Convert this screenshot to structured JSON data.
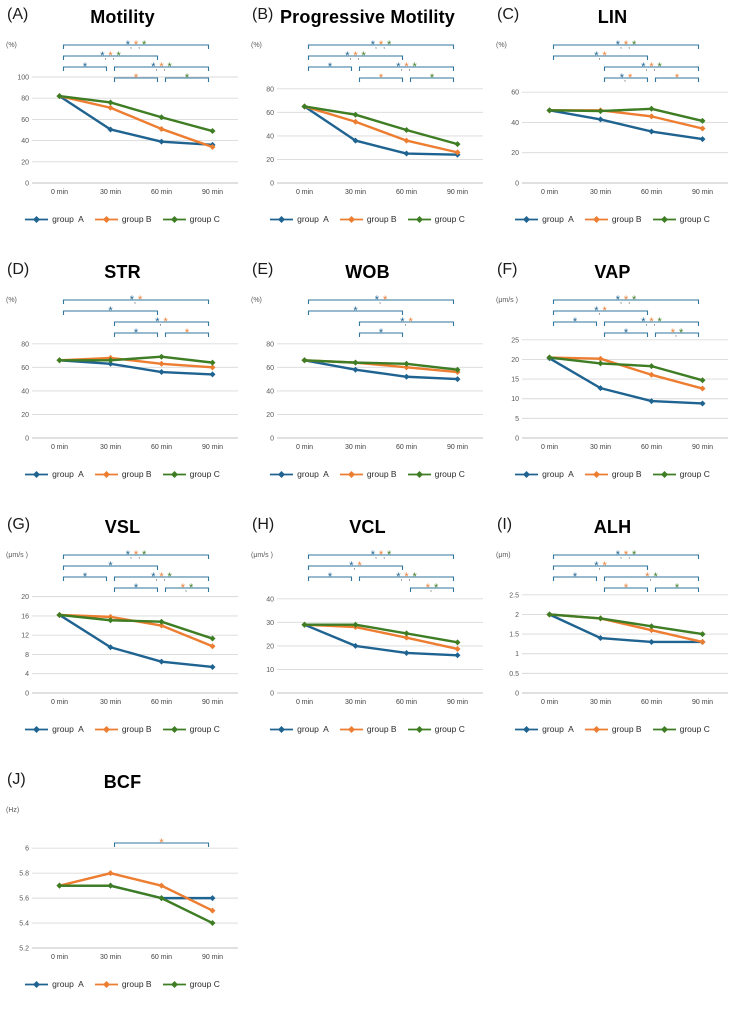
{
  "figure": {
    "background": "#ffffff",
    "panel_count": 10,
    "x_categories": [
      "0 min",
      "30 min",
      "60 min",
      "90 min"
    ]
  },
  "colors": {
    "bracket": "#31769e",
    "grid": "#d9d9d9",
    "baseline": "#c2c2c2",
    "tick_text": "#595959",
    "x_label_text": "#404040",
    "star_comma": "#333333",
    "series": {
      "A": "#1f6391",
      "B": "#ed7d31",
      "C": "#3e7d23"
    }
  },
  "legend": {
    "items": [
      {
        "key": "A",
        "label": "group  A"
      },
      {
        "key": "B",
        "label": "group B"
      },
      {
        "key": "C",
        "label": "group C"
      }
    ]
  },
  "chart_data": [
    {
      "panel": "(A)",
      "title": "Motility",
      "unit": "(%)",
      "type": "line",
      "x": [
        "0 min",
        "30 min",
        "60 min",
        "90 min"
      ],
      "ylim": [
        0,
        100
      ],
      "ytick_vals": [
        0,
        20,
        40,
        60,
        80,
        100
      ],
      "ytick_labels": [
        "0",
        "20",
        "40",
        "60",
        "80",
        "100"
      ],
      "grid": true,
      "legend_position": "bottom",
      "series": [
        {
          "name": "group A",
          "key": "A",
          "values": [
            82,
            50.5,
            39,
            36
          ]
        },
        {
          "name": "group B",
          "key": "B",
          "values": [
            82,
            71,
            51,
            34
          ]
        },
        {
          "name": "group C",
          "key": "C",
          "values": [
            82,
            76,
            62,
            49
          ]
        }
      ],
      "sig_brackets": [
        {
          "row": 0,
          "from": 0,
          "to": 3,
          "stars": [
            "A",
            "B",
            "C"
          ]
        },
        {
          "row": 1,
          "from": 0,
          "to": 2,
          "stars": [
            "A",
            "B",
            "C"
          ]
        },
        {
          "row": 2,
          "from": 0,
          "to": 1,
          "stars": [
            "A"
          ]
        },
        {
          "row": 2,
          "from": 1,
          "to": 3,
          "stars": [
            "A",
            "B",
            "C"
          ]
        },
        {
          "row": 3,
          "from": 1,
          "to": 2,
          "stars": [
            "B"
          ]
        },
        {
          "row": 3,
          "from": 2,
          "to": 3,
          "stars": [
            "C"
          ]
        }
      ]
    },
    {
      "panel": "(B)",
      "title": "Progressive Motility",
      "unit": "(%)",
      "type": "line",
      "x": [
        "0 min",
        "30 min",
        "60 min",
        "90 min"
      ],
      "ylim": [
        0,
        90
      ],
      "ytick_vals": [
        0,
        20,
        40,
        60,
        80
      ],
      "ytick_labels": [
        "0",
        "20",
        "40",
        "60",
        "80"
      ],
      "grid": true,
      "legend_position": "bottom",
      "series": [
        {
          "name": "group A",
          "key": "A",
          "values": [
            65,
            36,
            25,
            24
          ]
        },
        {
          "name": "group B",
          "key": "B",
          "values": [
            65,
            52,
            36,
            26
          ]
        },
        {
          "name": "group C",
          "key": "C",
          "values": [
            65,
            58,
            45,
            33
          ]
        }
      ],
      "sig_brackets": [
        {
          "row": 0,
          "from": 0,
          "to": 3,
          "stars": [
            "A",
            "B",
            "C"
          ]
        },
        {
          "row": 1,
          "from": 0,
          "to": 2,
          "stars": [
            "A",
            "B",
            "C"
          ]
        },
        {
          "row": 2,
          "from": 0,
          "to": 1,
          "stars": [
            "A"
          ]
        },
        {
          "row": 2,
          "from": 1,
          "to": 3,
          "stars": [
            "A",
            "B",
            "C"
          ]
        },
        {
          "row": 3,
          "from": 1,
          "to": 2,
          "stars": [
            "B"
          ]
        },
        {
          "row": 3,
          "from": 2,
          "to": 3,
          "stars": [
            "C"
          ]
        }
      ]
    },
    {
      "panel": "(C)",
      "title": "LIN",
      "unit": "(%)",
      "type": "line",
      "x": [
        "0 min",
        "30 min",
        "60 min",
        "90 min"
      ],
      "ylim": [
        0,
        70
      ],
      "ytick_vals": [
        0,
        20,
        40,
        60
      ],
      "ytick_labels": [
        "0",
        "20",
        "40",
        "60"
      ],
      "grid": true,
      "legend_position": "bottom",
      "series": [
        {
          "name": "group A",
          "key": "A",
          "values": [
            48,
            42,
            34,
            29
          ]
        },
        {
          "name": "group B",
          "key": "B",
          "values": [
            48,
            48,
            44,
            36
          ]
        },
        {
          "name": "group C",
          "key": "C",
          "values": [
            48,
            47.5,
            49,
            41
          ]
        }
      ],
      "sig_brackets": [
        {
          "row": 0,
          "from": 0,
          "to": 3,
          "stars": [
            "A",
            "B",
            "C"
          ]
        },
        {
          "row": 1,
          "from": 0,
          "to": 2,
          "stars": [
            "A",
            "B"
          ]
        },
        {
          "row": 2,
          "from": 1,
          "to": 3,
          "stars": [
            "A",
            "B",
            "C"
          ]
        },
        {
          "row": 3,
          "from": 1,
          "to": 2,
          "stars": [
            "A",
            "B"
          ]
        },
        {
          "row": 3,
          "from": 2,
          "to": 3,
          "stars": [
            "B"
          ]
        }
      ]
    },
    {
      "panel": "(D)",
      "title": "STR",
      "unit": "(%)",
      "type": "line",
      "x": [
        "0 min",
        "30 min",
        "60 min",
        "90 min"
      ],
      "ylim": [
        0,
        90
      ],
      "ytick_vals": [
        0,
        20,
        40,
        60,
        80
      ],
      "ytick_labels": [
        "0",
        "20",
        "40",
        "60",
        "80"
      ],
      "grid": true,
      "legend_position": "bottom",
      "series": [
        {
          "name": "group A",
          "key": "A",
          "values": [
            66,
            63,
            56,
            54
          ]
        },
        {
          "name": "group B",
          "key": "B",
          "values": [
            66,
            68,
            63,
            60
          ]
        },
        {
          "name": "group C",
          "key": "C",
          "values": [
            66,
            66,
            69,
            64
          ]
        }
      ],
      "sig_brackets": [
        {
          "row": 0,
          "from": 0,
          "to": 3,
          "stars": [
            "A",
            "B"
          ]
        },
        {
          "row": 1,
          "from": 0,
          "to": 2,
          "stars": [
            "A"
          ]
        },
        {
          "row": 2,
          "from": 1,
          "to": 3,
          "stars": [
            "A",
            "B"
          ]
        },
        {
          "row": 3,
          "from": 1,
          "to": 2,
          "stars": [
            "A"
          ]
        },
        {
          "row": 3,
          "from": 2,
          "to": 3,
          "stars": [
            "B"
          ]
        }
      ]
    },
    {
      "panel": "(E)",
      "title": "WOB",
      "unit": "(%)",
      "type": "line",
      "x": [
        "0 min",
        "30 min",
        "60 min",
        "90 min"
      ],
      "ylim": [
        0,
        90
      ],
      "ytick_vals": [
        0,
        20,
        40,
        60,
        80
      ],
      "ytick_labels": [
        "0",
        "20",
        "40",
        "60",
        "80"
      ],
      "grid": true,
      "legend_position": "bottom",
      "series": [
        {
          "name": "group A",
          "key": "A",
          "values": [
            66,
            58,
            52,
            50
          ]
        },
        {
          "name": "group B",
          "key": "B",
          "values": [
            66,
            64,
            60,
            56
          ]
        },
        {
          "name": "group C",
          "key": "C",
          "values": [
            66,
            64,
            63,
            58
          ]
        }
      ],
      "sig_brackets": [
        {
          "row": 0,
          "from": 0,
          "to": 3,
          "stars": [
            "A",
            "B"
          ]
        },
        {
          "row": 1,
          "from": 0,
          "to": 2,
          "stars": [
            "A"
          ]
        },
        {
          "row": 2,
          "from": 1,
          "to": 3,
          "stars": [
            "A",
            "B"
          ]
        },
        {
          "row": 3,
          "from": 1,
          "to": 2,
          "stars": [
            "A"
          ]
        }
      ]
    },
    {
      "panel": "(F)",
      "title": "VAP",
      "unit": "(μm/s )",
      "type": "line",
      "x": [
        "0 min",
        "30 min",
        "60 min",
        "90 min"
      ],
      "ylim": [
        0,
        27
      ],
      "ytick_vals": [
        0,
        5,
        10,
        15,
        20,
        25
      ],
      "ytick_labels": [
        "0",
        "5",
        "10",
        "15",
        "20",
        "25"
      ],
      "grid": true,
      "legend_position": "bottom",
      "series": [
        {
          "name": "group A",
          "key": "A",
          "values": [
            20.3,
            12.7,
            9.4,
            8.8
          ]
        },
        {
          "name": "group B",
          "key": "B",
          "values": [
            20.5,
            20.2,
            16.1,
            12.6
          ]
        },
        {
          "name": "group C",
          "key": "C",
          "values": [
            20.5,
            19,
            18.3,
            14.7
          ]
        }
      ],
      "sig_brackets": [
        {
          "row": 0,
          "from": 0,
          "to": 3,
          "stars": [
            "A",
            "B",
            "C"
          ]
        },
        {
          "row": 1,
          "from": 0,
          "to": 2,
          "stars": [
            "A",
            "B"
          ]
        },
        {
          "row": 2,
          "from": 0,
          "to": 1,
          "stars": [
            "A"
          ]
        },
        {
          "row": 2,
          "from": 1,
          "to": 3,
          "stars": [
            "A",
            "B",
            "C"
          ]
        },
        {
          "row": 3,
          "from": 1,
          "to": 2,
          "stars": [
            "A"
          ]
        },
        {
          "row": 3,
          "from": 2,
          "to": 3,
          "stars": [
            "B",
            "C"
          ]
        }
      ]
    },
    {
      "panel": "(G)",
      "title": "VSL",
      "unit": "(μm/s )",
      "type": "line",
      "x": [
        "0 min",
        "30 min",
        "60 min",
        "90 min"
      ],
      "ylim": [
        0,
        22
      ],
      "ytick_vals": [
        0,
        4,
        8,
        12,
        16,
        20
      ],
      "ytick_labels": [
        "0",
        "4",
        "8",
        "12",
        "16",
        "20"
      ],
      "grid": true,
      "legend_position": "bottom",
      "series": [
        {
          "name": "group A",
          "key": "A",
          "values": [
            16.2,
            9.5,
            6.5,
            5.4
          ]
        },
        {
          "name": "group B",
          "key": "B",
          "values": [
            16.2,
            15.8,
            14,
            9.7
          ]
        },
        {
          "name": "group C",
          "key": "C",
          "values": [
            16.2,
            15.1,
            14.8,
            11.3
          ]
        }
      ],
      "sig_brackets": [
        {
          "row": 0,
          "from": 0,
          "to": 3,
          "stars": [
            "A",
            "B",
            "C"
          ]
        },
        {
          "row": 1,
          "from": 0,
          "to": 2,
          "stars": [
            "A"
          ]
        },
        {
          "row": 2,
          "from": 0,
          "to": 1,
          "stars": [
            "A"
          ]
        },
        {
          "row": 2,
          "from": 1,
          "to": 3,
          "stars": [
            "A",
            "B",
            "C"
          ]
        },
        {
          "row": 3,
          "from": 1,
          "to": 2,
          "stars": [
            "A"
          ]
        },
        {
          "row": 3,
          "from": 2,
          "to": 3,
          "stars": [
            "B",
            "C"
          ]
        }
      ]
    },
    {
      "panel": "(H)",
      "title": "VCL",
      "unit": "(μm/s )",
      "type": "line",
      "x": [
        "0 min",
        "30 min",
        "60 min",
        "90 min"
      ],
      "ylim": [
        0,
        45
      ],
      "ytick_vals": [
        0,
        10,
        20,
        30,
        40
      ],
      "ytick_labels": [
        "0",
        "10",
        "20",
        "30",
        "40"
      ],
      "grid": true,
      "legend_position": "bottom",
      "series": [
        {
          "name": "group A",
          "key": "A",
          "values": [
            29,
            20,
            17,
            16
          ]
        },
        {
          "name": "group B",
          "key": "B",
          "values": [
            29,
            28,
            23.5,
            18.7
          ]
        },
        {
          "name": "group C",
          "key": "C",
          "values": [
            29,
            29,
            25.3,
            21.5
          ]
        }
      ],
      "sig_brackets": [
        {
          "row": 0,
          "from": 0,
          "to": 3,
          "stars": [
            "A",
            "B",
            "C"
          ]
        },
        {
          "row": 1,
          "from": 0,
          "to": 2,
          "stars": [
            "A",
            "B"
          ]
        },
        {
          "row": 2,
          "from": 0,
          "to": 1,
          "stars": [
            "A"
          ]
        },
        {
          "row": 2,
          "from": 1,
          "to": 3,
          "stars": [
            "A",
            "B",
            "C"
          ]
        },
        {
          "row": 3,
          "from": 2,
          "to": 3,
          "stars": [
            "B",
            "C"
          ]
        }
      ]
    },
    {
      "panel": "(I)",
      "title": "ALH",
      "unit": "(μm)",
      "type": "line",
      "x": [
        "0 min",
        "30 min",
        "60 min",
        "90 min"
      ],
      "ylim": [
        0,
        2.7
      ],
      "ytick_vals": [
        0,
        0.5,
        1,
        1.5,
        2,
        2.5
      ],
      "ytick_labels": [
        "0",
        "0.5",
        "1",
        "1.5",
        "2",
        "2.5"
      ],
      "grid": true,
      "legend_position": "bottom",
      "series": [
        {
          "name": "group A",
          "key": "A",
          "values": [
            2,
            1.4,
            1.3,
            1.3
          ]
        },
        {
          "name": "group B",
          "key": "B",
          "values": [
            2,
            1.9,
            1.6,
            1.3
          ]
        },
        {
          "name": "group C",
          "key": "C",
          "values": [
            2,
            1.9,
            1.7,
            1.5
          ]
        }
      ],
      "sig_brackets": [
        {
          "row": 0,
          "from": 0,
          "to": 3,
          "stars": [
            "A",
            "B",
            "C"
          ]
        },
        {
          "row": 1,
          "from": 0,
          "to": 2,
          "stars": [
            "A",
            "B"
          ]
        },
        {
          "row": 2,
          "from": 0,
          "to": 1,
          "stars": [
            "A"
          ]
        },
        {
          "row": 2,
          "from": 1,
          "to": 3,
          "stars": [
            "B",
            "C"
          ]
        },
        {
          "row": 3,
          "from": 1,
          "to": 2,
          "stars": [
            "B"
          ]
        },
        {
          "row": 3,
          "from": 2,
          "to": 3,
          "stars": [
            "C"
          ]
        }
      ]
    },
    {
      "panel": "(J)",
      "title": "BCF",
      "unit": "(Hz)",
      "type": "line",
      "x": [
        "0 min",
        "30 min",
        "60 min",
        "90 min"
      ],
      "ylim": [
        5.2,
        6.05
      ],
      "ytick_vals": [
        5.2,
        5.4,
        5.6,
        5.8,
        6
      ],
      "ytick_labels": [
        "5.2",
        "5.4",
        "5.6",
        "5.8",
        "6"
      ],
      "grid": true,
      "legend_position": "bottom",
      "series": [
        {
          "name": "group A",
          "key": "A",
          "values": [
            5.7,
            5.7,
            5.6,
            5.6
          ]
        },
        {
          "name": "group B",
          "key": "B",
          "values": [
            5.7,
            5.8,
            5.7,
            5.5
          ]
        },
        {
          "name": "group C",
          "key": "C",
          "values": [
            5.7,
            5.7,
            5.6,
            5.4
          ]
        }
      ],
      "sig_brackets": [
        {
          "row": 0,
          "from": 1,
          "to": 3,
          "stars": [
            "B"
          ]
        }
      ]
    }
  ]
}
